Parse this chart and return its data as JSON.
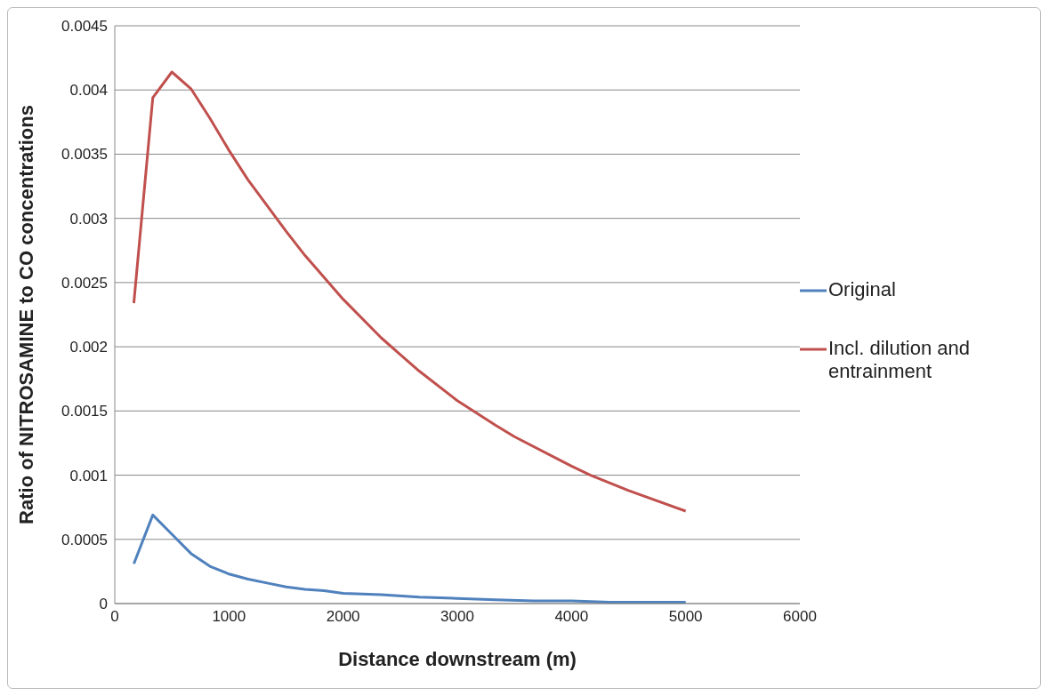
{
  "chart_data": {
    "type": "line",
    "xlabel": "Distance downstream (m)",
    "ylabel": "Ratio of NITROSAMINE to CO concentrations",
    "xlim": [
      0,
      6000
    ],
    "xticks": [
      0,
      1000,
      2000,
      3000,
      4000,
      5000,
      6000
    ],
    "ylim": [
      0,
      0.0045
    ],
    "yticks": [
      0,
      0.0005,
      0.001,
      0.0015,
      0.002,
      0.0025,
      0.003,
      0.0035,
      0.004,
      0.0045
    ],
    "grid": "y",
    "legend": "right",
    "marker": "none",
    "line_style": "solid",
    "series": [
      {
        "name": "Original",
        "color": "#4f81bd",
        "x": [
          167,
          333,
          500,
          667,
          833,
          1000,
          1167,
          1333,
          1500,
          1667,
          1833,
          2000,
          2333,
          2667,
          3000,
          3333,
          3667,
          4000,
          4333,
          5000
        ],
        "values": [
          0.00031,
          0.00069,
          0.00054,
          0.00039,
          0.00029,
          0.00023,
          0.00019,
          0.00016,
          0.00013,
          0.00011,
          0.0001,
          8e-05,
          7e-05,
          5e-05,
          4e-05,
          3e-05,
          2e-05,
          2e-05,
          1e-05,
          1e-05
        ]
      },
      {
        "name": "Incl. dilution and entrainment",
        "color": "#c0504d",
        "x": [
          167,
          333,
          500,
          667,
          833,
          1000,
          1167,
          1333,
          1500,
          1667,
          2000,
          2333,
          2500,
          2667,
          3000,
          3333,
          3500,
          4000,
          4167,
          4500,
          5000
        ],
        "values": [
          0.00234,
          0.00394,
          0.00414,
          0.00401,
          0.00378,
          0.00353,
          0.0033,
          0.0031,
          0.0029,
          0.00271,
          0.00237,
          0.00207,
          0.00194,
          0.00181,
          0.00158,
          0.00139,
          0.0013,
          0.00107,
          0.001,
          0.00088,
          0.00072
        ]
      }
    ]
  }
}
